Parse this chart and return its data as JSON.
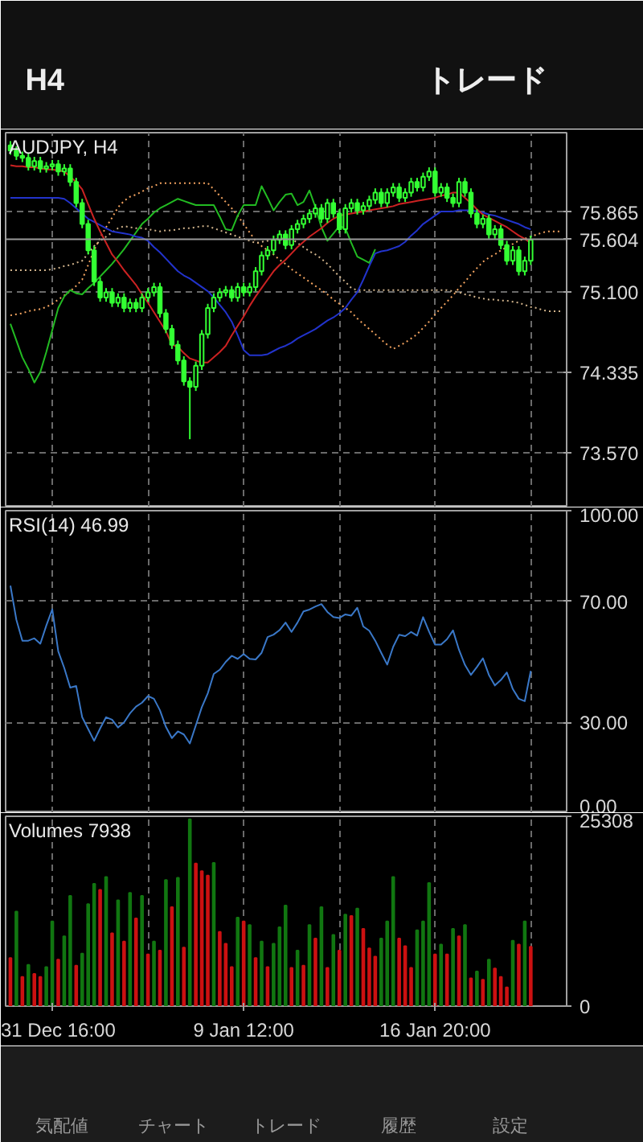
{
  "chart_data": [
    {
      "type": "other",
      "annotations": [
        "H4",
        "トレード"
      ]
    },
    {
      "type": "candlestick",
      "title": "AUDJPY, H4",
      "color": "#33ff33",
      "categories": [
        null,
        null,
        null,
        null,
        null,
        null,
        null,
        null,
        null,
        null,
        null,
        null,
        null,
        null,
        null,
        null,
        null,
        null,
        null,
        null,
        null,
        null,
        null,
        null,
        null,
        null,
        null,
        null,
        null,
        null,
        null,
        null,
        null,
        null,
        null,
        null,
        null,
        null,
        null,
        null,
        null,
        null,
        null,
        null,
        null,
        null,
        null,
        null,
        null,
        null,
        null,
        null,
        null,
        null,
        null,
        null,
        null,
        null,
        null,
        null,
        null,
        null,
        null,
        null,
        null,
        null,
        null,
        null,
        null,
        null,
        null,
        null,
        null,
        null,
        null,
        null,
        null,
        null,
        null,
        null,
        null,
        null,
        null,
        null,
        null,
        null,
        null,
        null,
        null,
        null,
        null,
        null,
        null
      ],
      "ohlc": [
        [
          76.5,
          76.54,
          76.41,
          76.45
        ],
        [
          76.45,
          76.49,
          76.36,
          76.4
        ],
        [
          76.4,
          76.44,
          76.34,
          76.38
        ],
        [
          76.38,
          76.42,
          76.26,
          76.3
        ],
        [
          76.3,
          76.39,
          76.26,
          76.35
        ],
        [
          76.35,
          76.39,
          76.24,
          76.28
        ],
        [
          76.28,
          76.34,
          76.24,
          76.3
        ],
        [
          76.3,
          76.36,
          76.26,
          76.32
        ],
        [
          76.32,
          76.36,
          76.21,
          76.25
        ],
        [
          76.25,
          76.32,
          76.21,
          76.28
        ],
        [
          76.28,
          76.32,
          76.11,
          76.15
        ],
        [
          76.15,
          76.19,
          75.91,
          75.95
        ],
        [
          75.95,
          75.99,
          75.71,
          75.75
        ],
        [
          75.75,
          75.79,
          75.46,
          75.5
        ],
        [
          75.5,
          75.54,
          75.16,
          75.2
        ],
        [
          75.2,
          75.24,
          75.01,
          75.05
        ],
        [
          75.05,
          75.14,
          75.01,
          75.1
        ],
        [
          75.1,
          75.14,
          74.96,
          75.0
        ],
        [
          75.0,
          75.09,
          74.96,
          75.05
        ],
        [
          75.05,
          75.09,
          74.91,
          74.95
        ],
        [
          74.95,
          75.04,
          74.91,
          75.0
        ],
        [
          75.0,
          75.04,
          74.91,
          74.95
        ],
        [
          74.95,
          75.09,
          74.91,
          75.05
        ],
        [
          75.05,
          75.14,
          75.01,
          75.1
        ],
        [
          75.1,
          75.19,
          75.06,
          75.15
        ],
        [
          75.15,
          75.19,
          74.86,
          74.9
        ],
        [
          74.9,
          74.94,
          74.71,
          74.75
        ],
        [
          74.75,
          74.79,
          74.56,
          74.6
        ],
        [
          74.6,
          74.64,
          74.41,
          74.45
        ],
        [
          74.45,
          74.49,
          74.21,
          74.25
        ],
        [
          74.25,
          74.29,
          73.7,
          74.2
        ],
        [
          74.2,
          74.44,
          74.16,
          74.4
        ],
        [
          74.4,
          74.74,
          74.36,
          74.7
        ],
        [
          74.7,
          74.99,
          74.66,
          74.95
        ],
        [
          74.95,
          75.09,
          74.91,
          75.05
        ],
        [
          75.05,
          75.14,
          75.01,
          75.1
        ],
        [
          75.1,
          75.16,
          75.06,
          75.12
        ],
        [
          75.12,
          75.16,
          75.01,
          75.05
        ],
        [
          75.05,
          75.19,
          75.01,
          75.15
        ],
        [
          75.15,
          75.19,
          75.06,
          75.1
        ],
        [
          75.1,
          75.19,
          75.06,
          75.15
        ],
        [
          75.15,
          75.34,
          75.11,
          75.3
        ],
        [
          75.3,
          75.49,
          75.26,
          75.45
        ],
        [
          75.45,
          75.54,
          75.41,
          75.5
        ],
        [
          75.5,
          75.64,
          75.46,
          75.6
        ],
        [
          75.6,
          75.69,
          75.56,
          75.65
        ],
        [
          75.65,
          75.69,
          75.51,
          75.55
        ],
        [
          75.55,
          75.74,
          75.51,
          75.7
        ],
        [
          75.7,
          75.79,
          75.66,
          75.75
        ],
        [
          75.75,
          75.84,
          75.71,
          75.8
        ],
        [
          75.8,
          75.89,
          75.76,
          75.85
        ],
        [
          75.85,
          75.94,
          75.81,
          75.9
        ],
        [
          75.9,
          75.94,
          75.76,
          75.8
        ],
        [
          75.8,
          75.99,
          75.76,
          75.95
        ],
        [
          75.95,
          75.99,
          75.81,
          75.85
        ],
        [
          75.85,
          75.89,
          75.66,
          75.7
        ],
        [
          75.7,
          75.94,
          75.66,
          75.9
        ],
        [
          75.9,
          75.99,
          75.86,
          75.95
        ],
        [
          75.95,
          75.99,
          75.84,
          75.88
        ],
        [
          75.88,
          75.96,
          75.84,
          75.92
        ],
        [
          75.92,
          76.02,
          75.88,
          75.98
        ],
        [
          75.98,
          76.09,
          75.94,
          76.05
        ],
        [
          76.05,
          76.09,
          75.91,
          75.95
        ],
        [
          75.95,
          76.09,
          75.91,
          76.05
        ],
        [
          76.05,
          76.14,
          76.01,
          76.1
        ],
        [
          76.1,
          76.14,
          75.96,
          76.0
        ],
        [
          76.0,
          76.09,
          75.96,
          76.05
        ],
        [
          76.05,
          76.19,
          76.01,
          76.15
        ],
        [
          76.15,
          76.19,
          76.06,
          76.1
        ],
        [
          76.1,
          76.24,
          76.06,
          76.2
        ],
        [
          76.2,
          76.29,
          76.16,
          76.25
        ],
        [
          76.25,
          76.29,
          76.01,
          76.05
        ],
        [
          76.05,
          76.14,
          76.01,
          76.1
        ],
        [
          76.1,
          76.14,
          75.96,
          76.0
        ],
        [
          76.0,
          76.04,
          75.91,
          75.95
        ],
        [
          75.95,
          76.19,
          75.91,
          76.15
        ],
        [
          76.15,
          76.19,
          76.01,
          76.05
        ],
        [
          76.05,
          76.09,
          75.81,
          75.85
        ],
        [
          75.85,
          75.89,
          75.71,
          75.75
        ],
        [
          75.75,
          75.84,
          75.71,
          75.8
        ],
        [
          75.8,
          75.84,
          75.61,
          75.65
        ],
        [
          75.65,
          75.74,
          75.61,
          75.7
        ],
        [
          75.7,
          75.74,
          75.51,
          75.55
        ],
        [
          75.55,
          75.59,
          75.36,
          75.4
        ],
        [
          75.4,
          75.54,
          75.36,
          75.5
        ],
        [
          75.5,
          75.54,
          75.26,
          75.3
        ],
        [
          75.3,
          75.44,
          75.26,
          75.4
        ],
        [
          75.4,
          75.64,
          75.36,
          75.6
        ],
        null,
        null,
        null,
        null,
        null
      ],
      "series": [
        {
          "type": "line",
          "color": "#f4a460",
          "line_style": "dotted",
          "values": [
            74.88,
            74.89,
            74.9,
            74.92,
            74.93,
            74.94,
            74.96,
            74.99,
            75.03,
            75.07,
            75.11,
            75.16,
            75.22,
            75.36,
            75.5,
            75.62,
            75.72,
            75.81,
            75.91,
            75.97,
            76.01,
            76.03,
            76.06,
            76.09,
            76.11,
            76.14,
            76.14,
            76.14,
            76.14,
            76.14,
            76.14,
            76.14,
            76.14,
            76.14,
            76.08,
            76.02,
            75.96,
            75.9,
            75.83,
            75.75,
            75.67,
            75.59,
            75.54,
            75.5,
            75.46,
            75.41,
            75.37,
            75.32,
            75.28,
            75.24,
            75.2,
            75.16,
            75.12,
            75.08,
            75.03,
            74.99,
            74.95,
            74.91,
            74.85,
            74.8,
            74.75,
            74.7,
            74.65,
            74.6,
            74.56,
            74.59,
            74.62,
            74.66,
            74.7,
            74.76,
            74.82,
            74.89,
            74.95,
            75.01,
            75.07,
            75.14,
            75.2,
            75.27,
            75.33,
            75.39,
            75.43,
            75.46,
            75.5,
            75.53,
            75.56,
            75.59,
            75.61,
            75.63,
            75.65,
            75.67,
            75.68,
            75.68,
            75.68
          ]
        },
        {
          "type": "line",
          "color": "#d2b48c",
          "line_style": "dotted",
          "values": [
            75.31,
            75.31,
            75.31,
            75.31,
            75.31,
            75.31,
            75.31,
            75.32,
            75.33,
            75.35,
            75.36,
            75.38,
            75.4,
            75.47,
            75.54,
            75.59,
            75.63,
            75.67,
            75.71,
            75.73,
            75.72,
            75.71,
            75.71,
            75.7,
            75.69,
            75.68,
            75.69,
            75.69,
            75.7,
            75.71,
            75.71,
            75.72,
            75.73,
            75.73,
            75.71,
            75.69,
            75.67,
            75.65,
            75.63,
            75.61,
            75.59,
            75.57,
            75.58,
            75.59,
            75.6,
            75.61,
            75.62,
            75.61,
            75.57,
            75.53,
            75.49,
            75.46,
            75.42,
            75.37,
            75.31,
            75.25,
            75.2,
            75.14,
            75.12,
            75.12,
            75.12,
            75.12,
            75.12,
            75.12,
            75.12,
            75.12,
            75.12,
            75.12,
            75.12,
            75.12,
            75.12,
            75.12,
            75.12,
            75.12,
            75.11,
            75.1,
            75.08,
            75.07,
            75.05,
            75.04,
            75.03,
            75.03,
            75.02,
            75.02,
            75.01,
            75.0,
            74.98,
            74.96,
            74.95,
            74.93,
            74.92,
            74.92,
            74.92
          ]
        },
        {
          "type": "line",
          "color": "#22bb22",
          "values": [
            74.8,
            74.64,
            74.48,
            74.37,
            74.24,
            74.34,
            74.53,
            74.74,
            74.95,
            75.06,
            75.12,
            75.09,
            75.08,
            75.14,
            75.19,
            75.25,
            75.31,
            75.37,
            75.44,
            75.51,
            75.59,
            75.67,
            75.75,
            75.8,
            75.86,
            75.9,
            75.93,
            75.96,
            75.99,
            75.97,
            75.95,
            75.93,
            75.93,
            75.93,
            75.93,
            75.82,
            75.7,
            75.69,
            75.83,
            75.93,
            75.93,
            75.93,
            76.11,
            76.0,
            75.88,
            75.96,
            76.03,
            76.04,
            75.93,
            75.96,
            76.07,
            75.91,
            75.72,
            75.59,
            75.66,
            75.73,
            75.71,
            75.57,
            75.44,
            75.41,
            75.38,
            75.51,
            null,
            null,
            null,
            null,
            null,
            null,
            null,
            null,
            null,
            null,
            null,
            null,
            null,
            null,
            null,
            null,
            null,
            null,
            null,
            null,
            null,
            null,
            null,
            null,
            null,
            null,
            null,
            null,
            null,
            null,
            null
          ]
        },
        {
          "type": "line",
          "color": "#2233cc",
          "values": [
            76.0,
            76.0,
            76.0,
            76.0,
            76.0,
            76.0,
            76.0,
            76.0,
            76.0,
            75.99,
            75.95,
            75.9,
            75.85,
            75.8,
            75.77,
            75.74,
            75.71,
            75.68,
            75.67,
            75.66,
            75.65,
            75.63,
            75.62,
            75.59,
            75.53,
            75.48,
            75.42,
            75.36,
            75.3,
            75.26,
            75.23,
            75.19,
            75.15,
            75.11,
            75.05,
            74.98,
            74.91,
            74.82,
            74.69,
            74.55,
            74.5,
            74.5,
            74.5,
            74.51,
            74.54,
            74.57,
            74.59,
            74.62,
            74.66,
            74.69,
            74.72,
            74.75,
            74.79,
            74.83,
            74.86,
            74.9,
            74.95,
            75.03,
            75.1,
            75.22,
            75.35,
            75.47,
            75.49,
            75.5,
            75.52,
            75.54,
            75.58,
            75.64,
            75.69,
            75.75,
            75.79,
            75.83,
            75.87,
            75.87,
            75.87,
            75.88,
            75.88,
            75.88,
            75.87,
            75.86,
            75.84,
            75.83,
            75.81,
            75.79,
            75.77,
            75.75,
            75.72,
            75.7,
            null,
            null,
            null,
            null,
            null
          ]
        },
        {
          "type": "line",
          "color": "#cc2222",
          "values": [
            76.31,
            76.3,
            76.3,
            76.29,
            76.29,
            76.28,
            76.27,
            76.27,
            76.26,
            76.25,
            76.2,
            76.15,
            76.08,
            75.94,
            75.8,
            75.68,
            75.57,
            75.46,
            75.39,
            75.31,
            75.24,
            75.17,
            75.08,
            75.0,
            74.91,
            74.82,
            74.73,
            74.6,
            74.58,
            74.52,
            74.47,
            74.45,
            74.43,
            74.43,
            74.48,
            74.53,
            74.59,
            74.69,
            74.78,
            74.87,
            74.97,
            75.06,
            75.14,
            75.22,
            75.3,
            75.36,
            75.41,
            75.47,
            75.53,
            75.58,
            75.63,
            75.67,
            75.71,
            75.76,
            75.8,
            75.83,
            75.84,
            75.85,
            75.86,
            75.87,
            75.88,
            75.89,
            75.9,
            75.91,
            75.92,
            75.94,
            75.95,
            75.96,
            75.97,
            75.98,
            75.99,
            76.0,
            76.02,
            76.03,
            76.05,
            76.05,
            76.0,
            75.95,
            75.89,
            75.84,
            75.81,
            75.78,
            75.75,
            75.72,
            75.68,
            75.64,
            75.61,
            75.57,
            null,
            null,
            null,
            null,
            null
          ]
        }
      ],
      "ylim": [
        73.05,
        76.62
      ],
      "yticks": [
        {
          "value": 75.865,
          "label": "75.865"
        },
        {
          "value": 75.1,
          "label": "75.100"
        },
        {
          "value": 74.335,
          "label": "74.335"
        },
        {
          "value": 73.57,
          "label": "73.570"
        }
      ],
      "ref_lines": [
        {
          "axis": "y",
          "value": 75.604,
          "label": "75.604",
          "color": "#9a9a9a"
        }
      ],
      "tick_labels": "y",
      "grid": true
    },
    {
      "type": "line",
      "title": "RSI(14) 46.99",
      "color": "#3a78c8",
      "categories": [
        null,
        null,
        null,
        null,
        null,
        null,
        null,
        null,
        null,
        null,
        null,
        null,
        null,
        null,
        null,
        null,
        null,
        null,
        null,
        null,
        null,
        null,
        null,
        null,
        null,
        null,
        null,
        null,
        null,
        null,
        null,
        null,
        null,
        null,
        null,
        null,
        null,
        null,
        null,
        null,
        null,
        null,
        null,
        null,
        null,
        null,
        null,
        null,
        null,
        null,
        null,
        null,
        null,
        null,
        null,
        null,
        null,
        null,
        null,
        null,
        null,
        null,
        null,
        null,
        null,
        null,
        null,
        null,
        null,
        null,
        null,
        null,
        null,
        null,
        null,
        null,
        null,
        null,
        null,
        null,
        null,
        null,
        null,
        null,
        null,
        null,
        null,
        null,
        null,
        null,
        null,
        null,
        null
      ],
      "values": [
        75.2,
        63.9,
        57,
        57,
        57.8,
        56,
        62,
        67.4,
        53.5,
        48,
        41.5,
        42,
        31.7,
        27.8,
        23.9,
        28,
        31.7,
        30.9,
        28.3,
        30,
        33,
        35.2,
        36.5,
        38.7,
        37.8,
        34,
        28.5,
        24.8,
        27,
        26,
        23,
        29,
        35,
        39.6,
        46,
        47.4,
        50,
        52,
        51,
        52.6,
        51,
        50.8,
        53,
        58.2,
        59,
        60.5,
        63,
        59.9,
        63,
        66.7,
        67.3,
        68.3,
        69.1,
        66.5,
        64.8,
        64.5,
        65.7,
        65.3,
        67.9,
        61.7,
        60.3,
        57,
        53,
        49.1,
        55,
        59,
        58.5,
        59.9,
        58.7,
        64.8,
        60,
        55.7,
        55.7,
        57.5,
        60.4,
        54,
        49,
        45.7,
        48.3,
        51.2,
        45.7,
        42.2,
        44,
        46.5,
        41,
        37.8,
        37,
        47,
        null,
        null,
        null,
        null,
        null
      ],
      "ylim": [
        0,
        100
      ],
      "yticks": [
        {
          "value": 0,
          "label": "0.00"
        },
        {
          "value": 30,
          "label": "30.00"
        },
        {
          "value": 70,
          "label": "70.00"
        },
        {
          "value": 100,
          "label": "100.00"
        }
      ],
      "tick_labels": "y",
      "grid": true
    },
    {
      "type": "bar",
      "title": "Volumes 7938",
      "categories": [
        null,
        null,
        null,
        null,
        null,
        null,
        null,
        "31 Dec 16:00",
        null,
        null,
        null,
        null,
        null,
        null,
        null,
        null,
        null,
        null,
        null,
        null,
        null,
        null,
        null,
        null,
        null,
        null,
        null,
        null,
        null,
        null,
        null,
        null,
        null,
        null,
        null,
        null,
        null,
        null,
        null,
        "9 Jan 12:00",
        null,
        null,
        null,
        null,
        null,
        null,
        null,
        null,
        null,
        null,
        null,
        null,
        null,
        null,
        null,
        null,
        null,
        null,
        null,
        null,
        null,
        null,
        null,
        null,
        null,
        null,
        null,
        null,
        null,
        null,
        null,
        "16 Jan 20:00",
        null,
        null,
        null,
        null,
        null,
        null,
        null,
        null,
        null,
        null,
        null,
        null,
        null,
        null,
        null,
        null,
        null,
        null,
        null,
        null,
        null
      ],
      "values": [
        6400,
        12600,
        3900,
        5500,
        4300,
        3900,
        5200,
        11300,
        6200,
        9300,
        14700,
        5400,
        7000,
        13600,
        16300,
        15500,
        17200,
        9700,
        14100,
        8600,
        15100,
        11700,
        14700,
        6900,
        8600,
        7400,
        16800,
        13200,
        17100,
        7800,
        24900,
        19000,
        18000,
        17400,
        19100,
        9900,
        8300,
        5200,
        11800,
        11300,
        10800,
        6400,
        8600,
        5200,
        8300,
        10500,
        13400,
        5100,
        7400,
        5400,
        10800,
        9000,
        13200,
        5100,
        9500,
        7400,
        12200,
        12000,
        13000,
        10300,
        7700,
        6600,
        9000,
        11300,
        17200,
        9000,
        8000,
        5100,
        10100,
        11300,
        16400,
        6900,
        8200,
        6900,
        10300,
        9300,
        10800,
        3700,
        4600,
        3500,
        6200,
        5000,
        3900,
        2500,
        8700,
        8200,
        11300,
        7900,
        null,
        null,
        null,
        null,
        null
      ],
      "colors": [
        "#cc1111",
        "#117711",
        "#cc1111",
        "#117711",
        "#cc1111",
        "#cc1111",
        "#117711",
        "#117711",
        "#cc1111",
        "#117711",
        "#117711",
        "#cc1111",
        "#117711",
        "#117711",
        "#117711",
        "#cc1111",
        "#117711",
        "#cc1111",
        "#117711",
        "#cc1111",
        "#117711",
        "#cc1111",
        "#117711",
        "#cc1111",
        "#117711",
        "#cc1111",
        "#117711",
        "#cc1111",
        "#117711",
        "#cc1111",
        "#117711",
        "#cc1111",
        "#cc1111",
        "#cc1111",
        "#117711",
        "#cc1111",
        "#cc1111",
        "#cc1111",
        "#117711",
        "#cc1111",
        "#117711",
        "#cc1111",
        "#117711",
        "#cc1111",
        "#117711",
        "#117711",
        "#117711",
        "#cc1111",
        "#117711",
        "#cc1111",
        "#117711",
        "#cc1111",
        "#117711",
        "#cc1111",
        "#117711",
        "#cc1111",
        "#117711",
        "#cc1111",
        "#117711",
        "#cc1111",
        "#cc1111",
        "#cc1111",
        "#117711",
        "#117711",
        "#117711",
        "#cc1111",
        "#cc1111",
        "#cc1111",
        "#117711",
        "#117711",
        "#117711",
        "#cc1111",
        "#117711",
        "#cc1111",
        "#117711",
        "#cc1111",
        "#117711",
        "#cc1111",
        "#117711",
        "#cc1111",
        "#117711",
        "#cc1111",
        "#cc1111",
        "#cc1111",
        "#117711",
        "#cc1111",
        "#117711",
        "#cc1111",
        null,
        null,
        null,
        null,
        null
      ],
      "ylim": [
        0,
        25308
      ],
      "yticks": [
        0,
        25308
      ],
      "grid": "x"
    },
    {
      "type": "other",
      "annotations": [
        "気配値",
        "チャート",
        "トレード",
        "履歴",
        "設定"
      ]
    }
  ]
}
